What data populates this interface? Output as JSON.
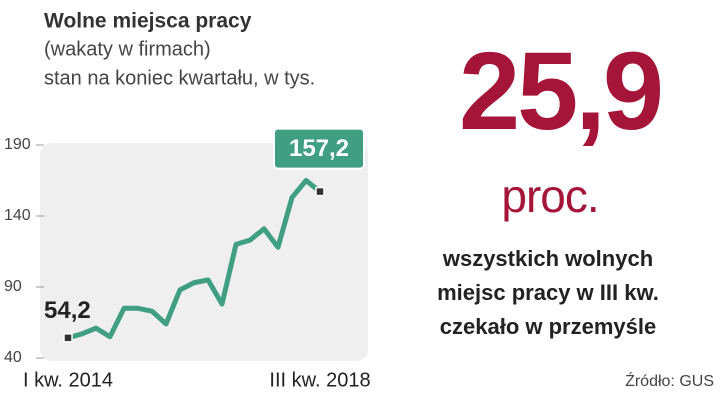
{
  "chart_data": {
    "type": "line",
    "title": "Wolne miejsca pracy",
    "subtitle": [
      "(wakaty w firmach)",
      "stan na koniec kwartału, w tys."
    ],
    "categories": [
      "I kw. 2014",
      null,
      null,
      null,
      null,
      null,
      null,
      null,
      null,
      null,
      null,
      null,
      null,
      null,
      null,
      null,
      null,
      null,
      "III kw. 2018"
    ],
    "values": [
      54.2,
      57,
      61,
      55,
      75,
      75,
      73,
      64,
      88,
      93,
      95,
      78,
      120,
      123,
      131,
      118,
      153,
      165,
      157.2
    ],
    "value_labels": [
      "54,2",
      null,
      null,
      null,
      null,
      null,
      null,
      null,
      null,
      null,
      null,
      null,
      null,
      null,
      null,
      null,
      null,
      null,
      "157,2"
    ],
    "color": "#3f9f80",
    "ylim": [
      40,
      190
    ],
    "yticks": [
      40,
      90,
      140,
      190
    ]
  },
  "highlight": {
    "value": "25,9",
    "unit": "proc.",
    "text": [
      "wszystkich wolnych",
      "miejsc pracy w III kw.",
      "czekało w przemyśle"
    ]
  },
  "source": "Źródło: GUS"
}
